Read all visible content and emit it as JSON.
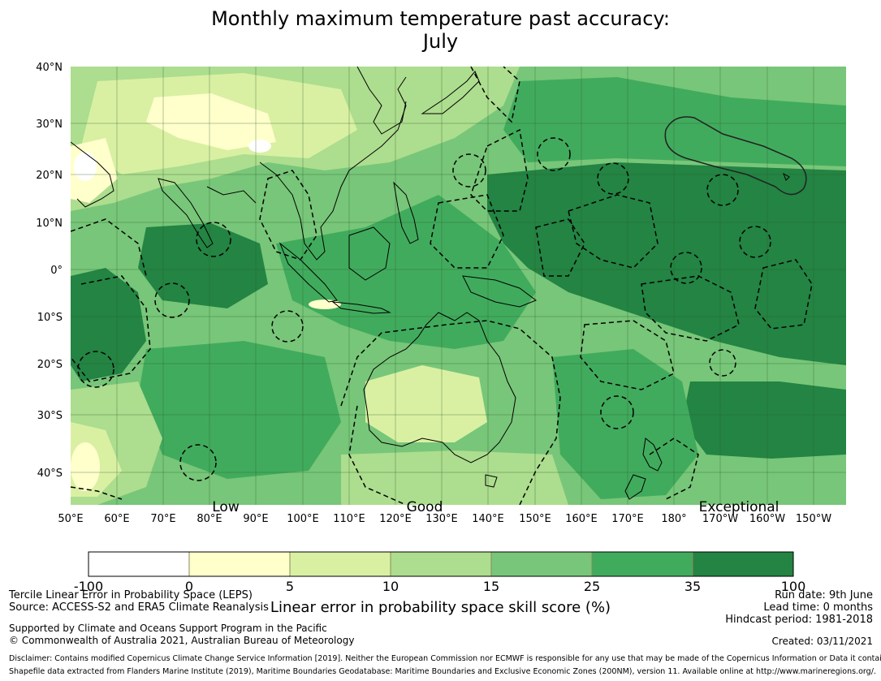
{
  "title": {
    "line1": "Monthly maximum temperature past accuracy:",
    "line2": "July"
  },
  "map": {
    "lat_labels": [
      "40°N",
      "30°N",
      "20°N",
      "10°N",
      "0°",
      "10°S",
      "20°S",
      "30°S",
      "40°S"
    ],
    "lon_labels": [
      "50°E",
      "60°E",
      "70°E",
      "80°E",
      "90°E",
      "100°E",
      "110°E",
      "120°E",
      "130°E",
      "140°E",
      "150°E",
      "160°E",
      "170°E",
      "180°",
      "170°W",
      "160°W",
      "150°W"
    ],
    "category_labels": [
      "Low",
      "Good",
      "Exceptional"
    ]
  },
  "colorbar": {
    "ticks": [
      "-100",
      "0",
      "5",
      "10",
      "15",
      "25",
      "35",
      "100"
    ],
    "colors": [
      "#ffffff",
      "#ffffcc",
      "#d9f0a3",
      "#addd8e",
      "#78c679",
      "#41ab5d",
      "#238443"
    ],
    "axis_label": "Linear error in probability space skill score (%)"
  },
  "footer": {
    "method": "Tercile Linear Error in Probability Space (LEPS)",
    "source": "Source: ACCESS-S2 and ERA5 Climate Reanalysis",
    "supported": "Supported by Climate and Oceans Support Program in the Pacific",
    "copyright": "© Commonwealth of Australia 2021, Australian Bureau of Meteorology",
    "run_date": "Run date: 9th June",
    "lead_time": "Lead time: 0 months",
    "hindcast": "Hindcast period: 1981-2018",
    "created": "Created: 03/11/2021",
    "disclaimer1": "Disclaimer: Contains modified Copernicus Climate Change Service Information [2019]. Neither the European Commission nor ECMWF is responsible for any use that may be made of the Copernicus Information or Data it contains.",
    "disclaimer2": "Shapefile data extracted from Flanders Marine Institute (2019), Maritime Boundaries Geodatabase: Maritime Boundaries and Exclusive Economic Zones (200NM), version 11. Available online at http://www.marineregions.org/."
  }
}
